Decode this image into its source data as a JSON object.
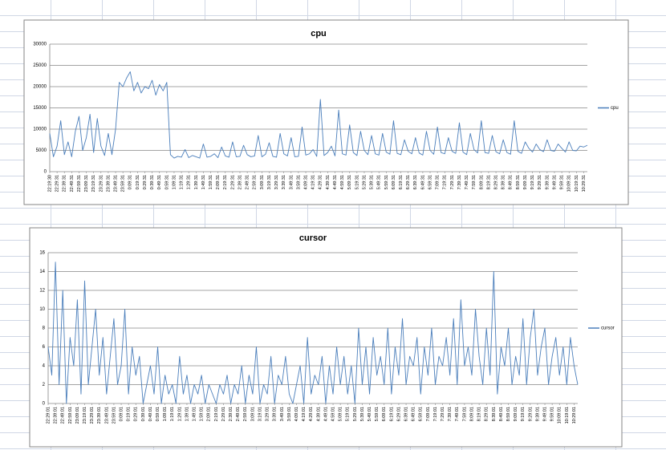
{
  "chart_data": [
    {
      "type": "line",
      "title": "cpu",
      "legend": "right",
      "grid": true,
      "ylim": [
        0,
        30000
      ],
      "yticks": [
        0,
        5000,
        10000,
        15000,
        20000,
        25000,
        30000
      ],
      "categories": [
        "22:19:30",
        null,
        "22:29:31",
        null,
        "22:39:31",
        null,
        "22:49:31",
        null,
        "22:59:31",
        null,
        "23:09:31",
        null,
        "23:19:31",
        null,
        "23:29:31",
        null,
        "23:39:31",
        null,
        "23:49:31",
        null,
        "23:59:31",
        null,
        "0:09:31",
        null,
        "0:19:31",
        null,
        "0:29:31",
        null,
        "0:39:31",
        null,
        "0:49:31",
        null,
        "0:59:31",
        null,
        "1:09:31",
        null,
        "1:19:31",
        null,
        "1:29:31",
        null,
        "1:39:31",
        null,
        "1:49:31",
        null,
        "1:59:31",
        null,
        "2:09:31",
        null,
        "2:19:31",
        null,
        "2:29:31",
        null,
        "2:39:31",
        null,
        "2:49:31",
        null,
        "2:59:31",
        null,
        "3:09:31",
        null,
        "3:19:31",
        null,
        "3:29:31",
        null,
        "3:39:31",
        null,
        "3:49:31",
        null,
        "3:59:31",
        null,
        "4:09:31",
        null,
        "4:19:31",
        null,
        "4:29:31",
        null,
        "4:39:31",
        null,
        "4:49:31",
        null,
        "4:59:31",
        null,
        "5:09:31",
        null,
        "5:19:31",
        null,
        "5:29:31",
        null,
        "5:39:31",
        null,
        "5:49:31",
        null,
        "5:59:31",
        null,
        "6:09:31",
        null,
        "6:19:31",
        null,
        "6:29:31",
        null,
        "6:39:31",
        null,
        "6:49:31",
        null,
        "6:59:31",
        null,
        "7:09:31",
        null,
        "7:19:31",
        null,
        "7:29:31",
        null,
        "7:39:31",
        null,
        "7:49:31",
        null,
        "7:59:31",
        null,
        "8:09:31",
        null,
        "8:19:31",
        null,
        "8:29:31",
        null,
        "8:39:31",
        null,
        "8:49:31",
        null,
        "8:59:31",
        null,
        "9:09:31",
        null,
        "9:19:31",
        null,
        "9:29:31",
        null,
        "9:39:31",
        null,
        "9:49:31",
        null,
        "9:59:31",
        null,
        "10:09:31",
        null,
        "10:19:31",
        null,
        "10:29:31",
        null
      ],
      "series": [
        {
          "name": "cpu",
          "color": "#4a7ebb",
          "values": [
            9000,
            3500,
            6000,
            12000,
            4000,
            7000,
            3500,
            9500,
            13000,
            5000,
            8000,
            13500,
            4500,
            12500,
            6000,
            3800,
            9000,
            4000,
            10000,
            21000,
            20000,
            22000,
            23500,
            19000,
            21000,
            18500,
            20000,
            19500,
            21500,
            18000,
            20500,
            19000,
            21000,
            4000,
            3200,
            3600,
            3400,
            5200,
            3300,
            3800,
            3500,
            3200,
            6500,
            3400,
            3600,
            4200,
            3300,
            5800,
            3700,
            3400,
            7000,
            3500,
            3600,
            6200,
            4000,
            3500,
            3700,
            8500,
            3500,
            4100,
            6800,
            3600,
            3400,
            9000,
            4200,
            3700,
            8000,
            3500,
            3600,
            10500,
            3900,
            4200,
            5200,
            3600,
            17000,
            3800,
            4500,
            6000,
            3700,
            14500,
            4200,
            3900,
            11000,
            4500,
            3800,
            9500,
            5000,
            4000,
            8500,
            4200,
            3900,
            9000,
            4600,
            4100,
            12000,
            4300,
            4000,
            7500,
            4800,
            4200,
            8000,
            4400,
            3900,
            9500,
            5000,
            4100,
            10500,
            4500,
            4200,
            8000,
            4800,
            4300,
            11500,
            4600,
            4000,
            9000,
            5200,
            4400,
            12000,
            4500,
            4300,
            8500,
            4700,
            4200,
            7500,
            4500,
            4100,
            12000,
            4800,
            4300,
            7000,
            5500,
            4600,
            6500,
            5200,
            4700,
            7500,
            5000,
            4800,
            6500,
            5500,
            4600,
            7000,
            5000,
            4900,
            6000,
            5800,
            6200
          ]
        }
      ]
    },
    {
      "type": "line",
      "title": "cursor",
      "legend": "right",
      "grid": true,
      "ylim": [
        0,
        16
      ],
      "yticks": [
        0,
        2,
        4,
        6,
        8,
        10,
        12,
        14,
        16
      ],
      "categories": [
        "22:29:01",
        null,
        "22:39:01",
        null,
        "22:49:01",
        null,
        "22:59:01",
        null,
        "23:09:01",
        null,
        "23:19:01",
        null,
        "23:29:01",
        null,
        "23:39:01",
        null,
        "23:49:01",
        null,
        "23:59:01",
        null,
        "0:09:01",
        null,
        "0:19:01",
        null,
        "0:29:01",
        null,
        "0:39:01",
        null,
        "0:49:01",
        null,
        "0:59:01",
        null,
        "1:09:01",
        null,
        "1:19:01",
        null,
        "1:29:01",
        null,
        "1:39:01",
        null,
        "1:49:01",
        null,
        "1:59:01",
        null,
        "2:09:01",
        null,
        "2:19:01",
        null,
        "2:29:01",
        null,
        "2:39:01",
        null,
        "2:49:01",
        null,
        "2:59:01",
        null,
        "3:09:01",
        null,
        "3:19:01",
        null,
        "3:29:01",
        null,
        "3:39:01",
        null,
        "3:49:01",
        null,
        "3:59:01",
        null,
        "4:09:01",
        null,
        "4:19:01",
        null,
        "4:29:01",
        null,
        "4:39:01",
        null,
        "4:49:01",
        null,
        "4:59:01",
        null,
        "5:09:01",
        null,
        "5:19:01",
        null,
        "5:29:01",
        null,
        "5:39:01",
        null,
        "5:49:01",
        null,
        "5:59:01",
        null,
        "6:09:01",
        null,
        "6:19:01",
        null,
        "6:29:01",
        null,
        "6:39:01",
        null,
        "6:49:01",
        null,
        "6:59:01",
        null,
        "7:09:01",
        null,
        "7:19:01",
        null,
        "7:29:01",
        null,
        "7:39:01",
        null,
        "7:49:01",
        null,
        "7:59:01",
        null,
        "8:09:01",
        null,
        "8:19:01",
        null,
        "8:29:01",
        null,
        "8:39:01",
        null,
        "8:49:01",
        null,
        "8:59:01",
        null,
        "9:09:01",
        null,
        "9:19:01",
        null,
        "9:29:01",
        null,
        "9:39:01",
        null,
        "9:49:01",
        null,
        "9:59:01",
        null,
        "10:09:01",
        null,
        "10:19:01",
        null,
        "10:29:01",
        null
      ],
      "series": [
        {
          "name": "cursor",
          "color": "#4a7ebb",
          "values": [
            6,
            3,
            15,
            2,
            12,
            0,
            7,
            4,
            11,
            1,
            13,
            2,
            6,
            10,
            3,
            7,
            1,
            5,
            9,
            2,
            4,
            10,
            1,
            6,
            3,
            5,
            0,
            2,
            4,
            1,
            6,
            0,
            3,
            1,
            2,
            0,
            5,
            1,
            3,
            0,
            2,
            1,
            3,
            0,
            2,
            1,
            0,
            2,
            1,
            3,
            0,
            2,
            1,
            4,
            0,
            3,
            1,
            6,
            0,
            2,
            1,
            5,
            0,
            3,
            2,
            5,
            1,
            0,
            2,
            4,
            0,
            7,
            1,
            3,
            2,
            5,
            0,
            4,
            1,
            6,
            2,
            5,
            1,
            4,
            0,
            8,
            2,
            6,
            1,
            7,
            3,
            5,
            2,
            8,
            1,
            6,
            3,
            9,
            2,
            5,
            4,
            7,
            1,
            6,
            3,
            8,
            2,
            5,
            4,
            7,
            3,
            9,
            2,
            11,
            4,
            6,
            3,
            10,
            5,
            2,
            8,
            3,
            14,
            1,
            6,
            4,
            8,
            2,
            5,
            3,
            9,
            2,
            7,
            10,
            3,
            6,
            8,
            2,
            5,
            7,
            3,
            6,
            2,
            7,
            4,
            2
          ]
        }
      ]
    }
  ]
}
